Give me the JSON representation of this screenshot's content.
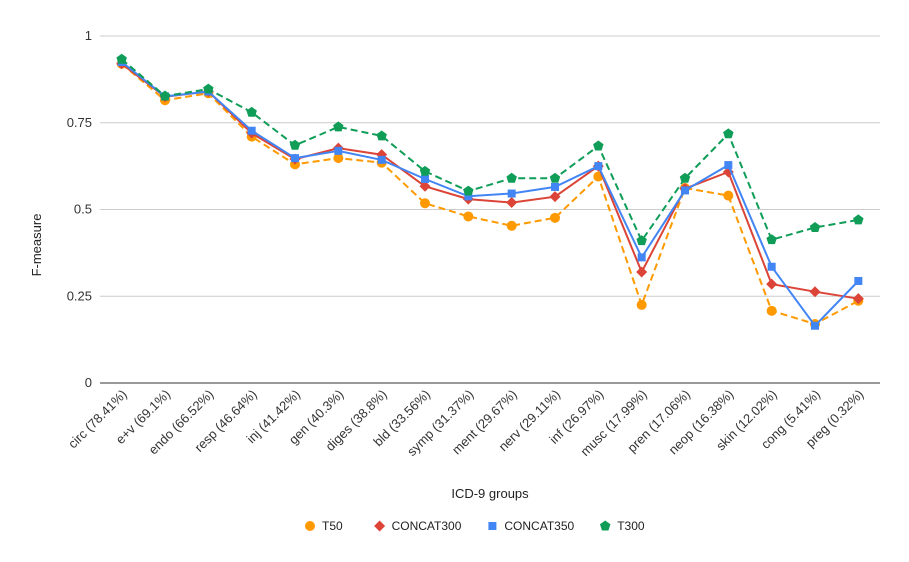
{
  "chart_data": {
    "type": "line",
    "title": "",
    "xlabel": "ICD-9 groups",
    "ylabel": "F-measure",
    "ylim": [
      0,
      1
    ],
    "yticks": [
      0,
      0.25,
      0.5,
      0.75,
      1
    ],
    "ytick_labels": [
      "0",
      "0.25",
      "0.5",
      "0.75",
      "1"
    ],
    "grid": true,
    "legend_position": "bottom",
    "categories": [
      "circ (78.41%)",
      "e+v (69.1%)",
      "endo (66.52%)",
      "resp (46.64%)",
      "inj (41.42%)",
      "gen (40.3%)",
      "diges (38.8%)",
      "bld (33.56%)",
      "symp (31.37%)",
      "ment (29.67%)",
      "nerv (29.11%)",
      "inf (26.97%)",
      "musc (17.99%)",
      "pren (17.06%)",
      "neop (16.38%)",
      "skin (12.02%)",
      "cong (5.41%)",
      "preg (0.32%)"
    ],
    "series": [
      {
        "name": "T50",
        "color": "#ff9900",
        "marker": "circle",
        "dashed": true,
        "values": [
          0.92,
          0.815,
          0.835,
          0.71,
          0.63,
          0.648,
          0.635,
          0.518,
          0.48,
          0.453,
          0.476,
          0.595,
          0.225,
          0.562,
          0.54,
          0.208,
          0.17,
          0.237
        ]
      },
      {
        "name": "CONCAT300",
        "color": "#db4437",
        "marker": "diamond",
        "dashed": false,
        "values": [
          0.92,
          0.825,
          0.84,
          0.72,
          0.645,
          0.677,
          0.658,
          0.567,
          0.53,
          0.52,
          0.537,
          0.625,
          0.32,
          0.56,
          0.608,
          0.285,
          0.263,
          0.243
        ]
      },
      {
        "name": "CONCAT350",
        "color": "#4285f4",
        "marker": "square",
        "dashed": false,
        "values": [
          0.925,
          0.826,
          0.84,
          0.727,
          0.648,
          0.669,
          0.643,
          0.588,
          0.538,
          0.546,
          0.565,
          0.625,
          0.362,
          0.555,
          0.628,
          0.335,
          0.165,
          0.294
        ]
      },
      {
        "name": "T300",
        "color": "#0f9d58",
        "marker": "pentagon",
        "dashed": true,
        "values": [
          0.933,
          0.827,
          0.847,
          0.78,
          0.685,
          0.738,
          0.712,
          0.61,
          0.553,
          0.59,
          0.59,
          0.683,
          0.41,
          0.59,
          0.718,
          0.413,
          0.448,
          0.47
        ]
      }
    ]
  }
}
